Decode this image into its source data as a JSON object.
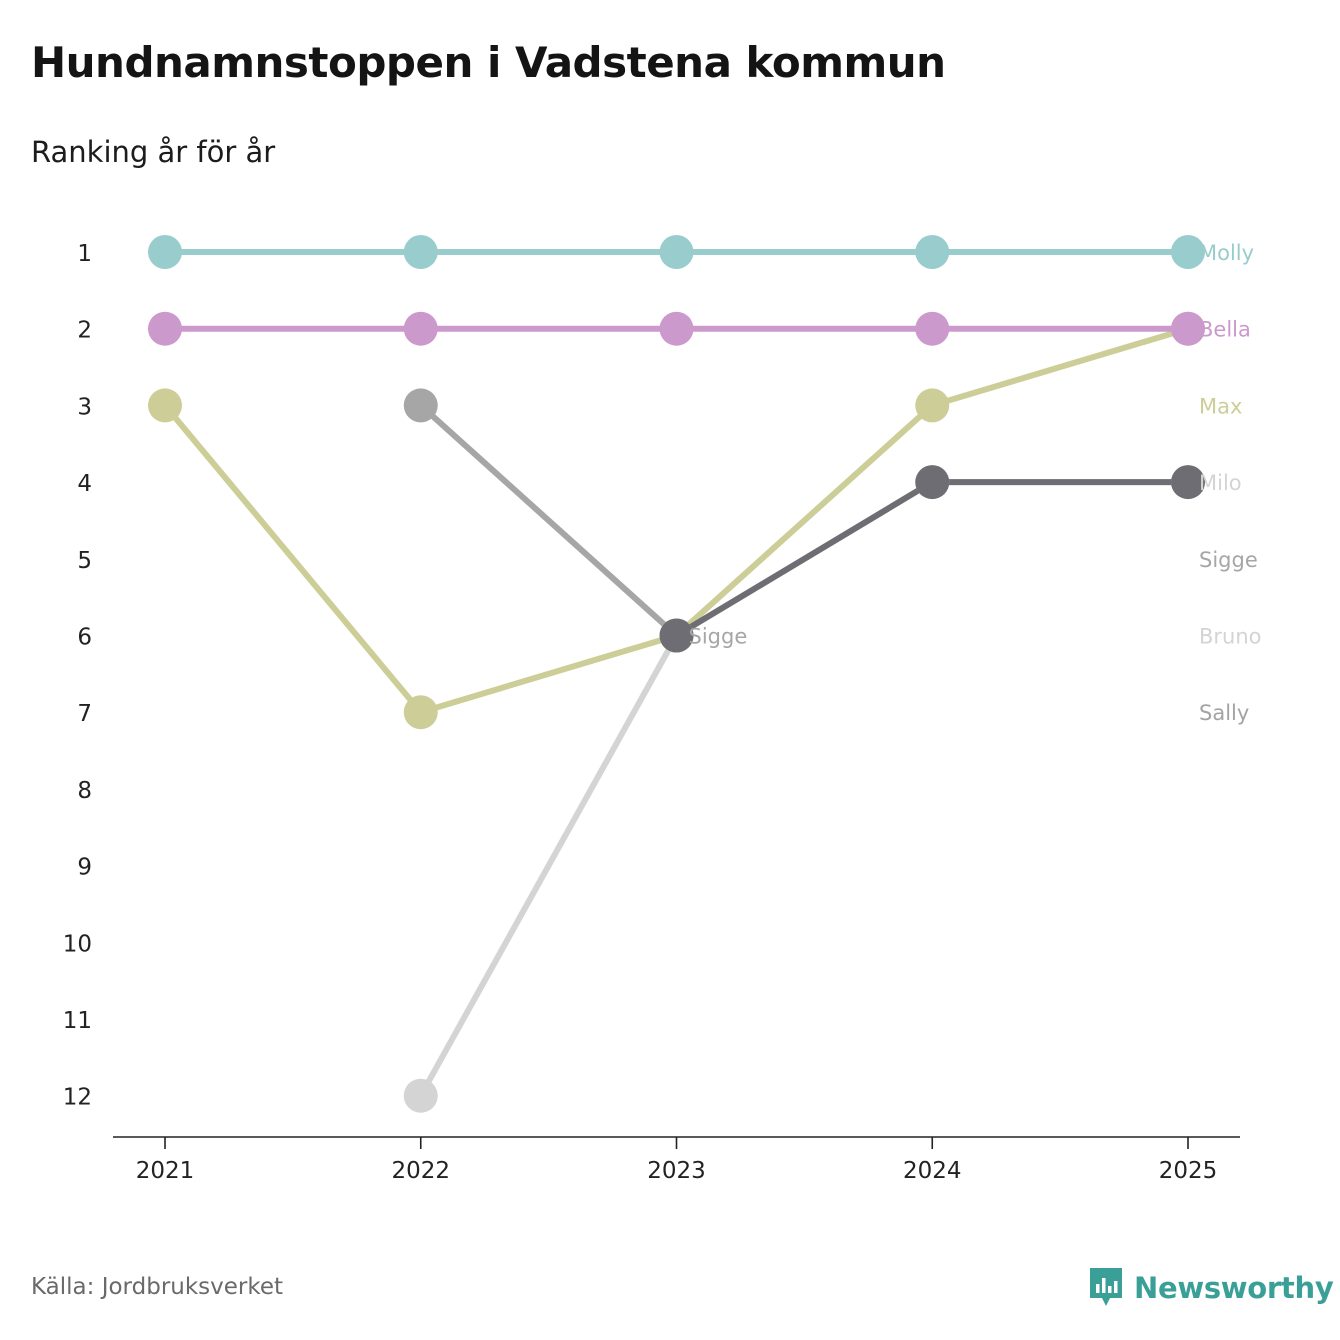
{
  "title": "Hundnamnstoppen i Vadstena kommun",
  "subtitle": "Ranking år för år",
  "source": "Källa: Jordbruksverket",
  "brand": "Newsworthy",
  "chart_data": {
    "type": "line",
    "title": "Hundnamnstoppen i Vadstena kommun",
    "subtitle": "Ranking år för år",
    "xlabel": "",
    "ylabel": "",
    "categories": [
      "2021",
      "2022",
      "2023",
      "2024",
      "2025"
    ],
    "y_ticks": [
      "1",
      "2",
      "3",
      "4",
      "5",
      "6",
      "7",
      "8",
      "9",
      "10",
      "11",
      "12"
    ],
    "ylim": [
      1,
      12
    ],
    "y_inverted": true,
    "series": [
      {
        "name": "Bruno",
        "color": "#d4d4d4",
        "values": [
          null,
          12,
          6,
          4,
          4
        ]
      },
      {
        "name": "Sigge",
        "color": "#a6a6a6",
        "values": [
          null,
          3,
          6,
          null,
          null
        ]
      },
      {
        "name": "Max",
        "color": "#cdcd98",
        "values": [
          3,
          7,
          6,
          3,
          2
        ]
      },
      {
        "name": "Bella",
        "color": "#cc99cc",
        "values": [
          2,
          2,
          2,
          2,
          2
        ]
      },
      {
        "name": "Molly",
        "color": "#99cccc",
        "values": [
          1,
          1,
          1,
          1,
          1
        ]
      },
      {
        "name": "Sally",
        "color": "#a3a3a3",
        "values": [
          null,
          null,
          null,
          null,
          null
        ]
      },
      {
        "name": "Milo",
        "color": "#6e6d73",
        "values": [
          null,
          null,
          6,
          4,
          4
        ]
      }
    ],
    "end_labels": [
      {
        "text": "Molly",
        "rank": 1,
        "color": "#99cccc"
      },
      {
        "text": "Bella",
        "rank": 2,
        "color": "#cc99cc"
      },
      {
        "text": "Max",
        "rank": 3,
        "color": "#cdcd98"
      },
      {
        "text": "Milo",
        "rank": 4,
        "color": "#d4d4d4"
      },
      {
        "text": "Sigge",
        "rank": 5,
        "color": "#a6a6a6"
      },
      {
        "text": "Bruno",
        "rank": 6,
        "color": "#d4d4d4"
      },
      {
        "text": "Sally",
        "rank": 7,
        "color": "#a3a3a3"
      }
    ],
    "annotations": [
      {
        "text": "Sigge",
        "x": "2023",
        "rank": 6,
        "color": "#a6a6a6"
      }
    ]
  }
}
